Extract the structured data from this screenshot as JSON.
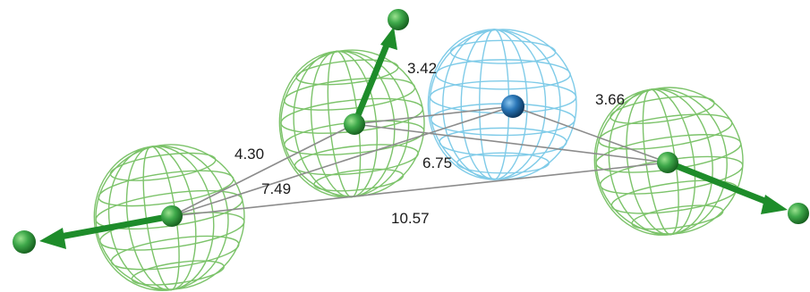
{
  "distances": [
    {
      "id": "d1",
      "label": "3.42"
    },
    {
      "id": "d2",
      "label": "3.66"
    },
    {
      "id": "d3",
      "label": "4.30"
    },
    {
      "id": "d4",
      "label": "6.75"
    },
    {
      "id": "d5",
      "label": "7.49"
    },
    {
      "id": "d6",
      "label": "10.57"
    }
  ],
  "colors": {
    "wire_green": "#7cc36a",
    "wire_blue": "#7fcbe8",
    "atom_green": "#2e9b3a",
    "atom_blue": "#1f5f9a",
    "arrow_green": "#1e8c2a",
    "connector_gray": "#8c8c8c"
  }
}
